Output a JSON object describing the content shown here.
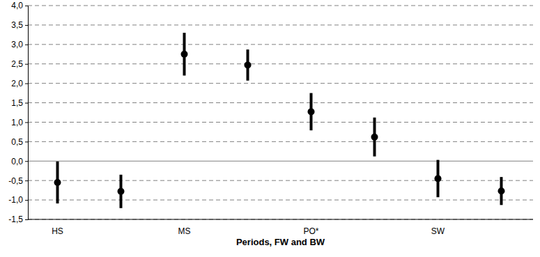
{
  "chart_data": {
    "type": "scatter",
    "x_label": "Periods, FW and BW",
    "categories": [
      "HS",
      null,
      "MS",
      null,
      "PO*",
      null,
      "SW",
      null
    ],
    "values": [
      -0.55,
      -0.78,
      2.75,
      2.47,
      1.27,
      0.62,
      -0.45,
      -0.77
    ],
    "errors": [
      0.54,
      0.43,
      0.55,
      0.4,
      0.48,
      0.5,
      0.48,
      0.36
    ],
    "color": "#000000",
    "marker": "circle",
    "ylim": [
      -1.5,
      4.0
    ],
    "yticks": [
      {
        "value": -1.5,
        "label": "-1,5"
      },
      {
        "value": -1.0,
        "label": "-1,0"
      },
      {
        "value": -0.5,
        "label": "-0,5"
      },
      {
        "value": 0,
        "label": "0,0"
      },
      {
        "value": 0.5,
        "label": "0,5"
      },
      {
        "value": 1.0,
        "label": "1,0"
      },
      {
        "value": 1.5,
        "label": "1,5"
      },
      {
        "value": 2.0,
        "label": "2,0"
      },
      {
        "value": 2.5,
        "label": "2,5"
      },
      {
        "value": 3.0,
        "label": "3,0"
      },
      {
        "value": 3.5,
        "label": "3,5"
      },
      {
        "value": 4.0,
        "label": "4,0"
      }
    ],
    "grid": true
  }
}
